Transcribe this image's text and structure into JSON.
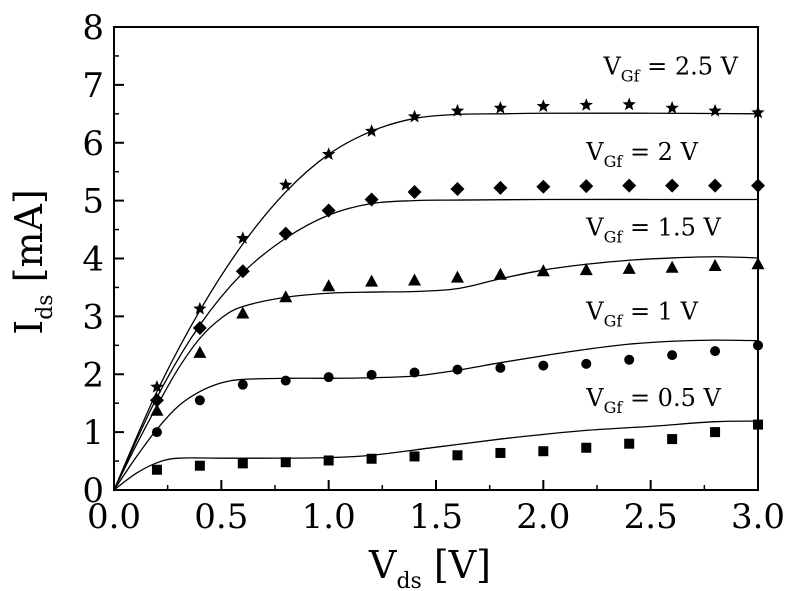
{
  "chart_data": {
    "type": "scatter",
    "title": "",
    "xlabel": {
      "main": "V",
      "sub": "ds",
      "unit": " [V]"
    },
    "ylabel": {
      "main": "I",
      "sub": "ds",
      "unit": " [mA]"
    },
    "xlim": [
      0,
      3
    ],
    "ylim": [
      0,
      8
    ],
    "xticks": [
      0,
      0.5,
      1,
      1.5,
      2,
      2.5,
      3
    ],
    "xtick_labels": [
      "0.0",
      "0.5",
      "1.0",
      "1.5",
      "2.0",
      "2.5",
      "3.0"
    ],
    "yticks": [
      0,
      1,
      2,
      3,
      4,
      5,
      6,
      7,
      8
    ],
    "ytick_labels": [
      "0",
      "1",
      "2",
      "3",
      "4",
      "5",
      "6",
      "7",
      "8"
    ],
    "grid": false,
    "legend": "none",
    "x": [
      0.2,
      0.4,
      0.6,
      0.8,
      1.0,
      1.2,
      1.4,
      1.6,
      1.8,
      2.0,
      2.2,
      2.4,
      2.6,
      2.8,
      3.0
    ],
    "series": [
      {
        "marker": "square",
        "label": {
          "main": "V",
          "sub": "Gf",
          "rest": " = 0.5 V"
        },
        "values": [
          0.35,
          0.42,
          0.46,
          0.48,
          0.51,
          0.54,
          0.58,
          0.6,
          0.64,
          0.67,
          0.73,
          0.8,
          0.88,
          1.0,
          1.13
        ],
        "fit": [
          [
            0,
            0
          ],
          [
            0.1,
            0.28
          ],
          [
            0.2,
            0.47
          ],
          [
            0.3,
            0.55
          ],
          [
            0.5,
            0.55
          ],
          [
            0.7,
            0.55
          ],
          [
            1.0,
            0.56
          ],
          [
            1.2,
            0.6
          ],
          [
            1.5,
            0.74
          ],
          [
            1.8,
            0.88
          ],
          [
            2.0,
            0.96
          ],
          [
            2.2,
            1.03
          ],
          [
            2.5,
            1.1
          ],
          [
            2.8,
            1.18
          ],
          [
            3.0,
            1.19
          ]
        ]
      },
      {
        "marker": "circle",
        "label": {
          "main": "V",
          "sub": "Gf",
          "rest": " = 1 V"
        },
        "values": [
          1.0,
          1.55,
          1.82,
          1.89,
          1.95,
          1.99,
          2.03,
          2.08,
          2.11,
          2.15,
          2.18,
          2.25,
          2.33,
          2.4,
          2.5
        ],
        "fit": [
          [
            0,
            0
          ],
          [
            0.1,
            0.55
          ],
          [
            0.2,
            1.05
          ],
          [
            0.3,
            1.45
          ],
          [
            0.4,
            1.7
          ],
          [
            0.5,
            1.85
          ],
          [
            0.6,
            1.91
          ],
          [
            0.8,
            1.93
          ],
          [
            1.0,
            1.93
          ],
          [
            1.2,
            1.94
          ],
          [
            1.4,
            1.97
          ],
          [
            1.6,
            2.07
          ],
          [
            1.8,
            2.2
          ],
          [
            2.0,
            2.32
          ],
          [
            2.2,
            2.43
          ],
          [
            2.4,
            2.52
          ],
          [
            2.6,
            2.57
          ],
          [
            2.8,
            2.59
          ],
          [
            3.0,
            2.58
          ]
        ]
      },
      {
        "marker": "triangle",
        "label": {
          "main": "V",
          "sub": "Gf",
          "rest": " = 1.5 V"
        },
        "values": [
          1.37,
          2.37,
          3.05,
          3.33,
          3.52,
          3.6,
          3.62,
          3.67,
          3.72,
          3.78,
          3.8,
          3.82,
          3.84,
          3.87,
          3.9
        ],
        "fit": [
          [
            0,
            0
          ],
          [
            0.1,
            0.75
          ],
          [
            0.2,
            1.45
          ],
          [
            0.3,
            2.1
          ],
          [
            0.4,
            2.62
          ],
          [
            0.5,
            2.97
          ],
          [
            0.6,
            3.17
          ],
          [
            0.8,
            3.33
          ],
          [
            1.0,
            3.4
          ],
          [
            1.2,
            3.42
          ],
          [
            1.4,
            3.43
          ],
          [
            1.6,
            3.48
          ],
          [
            1.8,
            3.65
          ],
          [
            2.0,
            3.8
          ],
          [
            2.2,
            3.9
          ],
          [
            2.4,
            3.97
          ],
          [
            2.6,
            4.01
          ],
          [
            2.8,
            4.03
          ],
          [
            3.0,
            4.01
          ]
        ]
      },
      {
        "marker": "diamond",
        "label": {
          "main": "V",
          "sub": "Gf",
          "rest": " = 2 V"
        },
        "values": [
          1.55,
          2.8,
          3.78,
          4.43,
          4.83,
          5.02,
          5.15,
          5.2,
          5.22,
          5.24,
          5.25,
          5.26,
          5.26,
          5.26,
          5.26
        ],
        "fit": [
          [
            0,
            0
          ],
          [
            0.2,
            1.6
          ],
          [
            0.4,
            2.85
          ],
          [
            0.6,
            3.75
          ],
          [
            0.8,
            4.35
          ],
          [
            1.0,
            4.75
          ],
          [
            1.2,
            4.95
          ],
          [
            1.4,
            5.0
          ],
          [
            1.6,
            5.01
          ],
          [
            2.0,
            5.02
          ],
          [
            2.5,
            5.02
          ],
          [
            3.0,
            5.02
          ]
        ]
      },
      {
        "marker": "star",
        "label": {
          "main": "V",
          "sub": "Gf",
          "rest": " = 2.5 V"
        },
        "values": [
          1.78,
          3.13,
          4.35,
          5.27,
          5.8,
          6.2,
          6.45,
          6.55,
          6.6,
          6.63,
          6.65,
          6.66,
          6.6,
          6.55,
          6.52
        ],
        "fit": [
          [
            0,
            0
          ],
          [
            0.2,
            1.7
          ],
          [
            0.4,
            3.1
          ],
          [
            0.6,
            4.25
          ],
          [
            0.8,
            5.15
          ],
          [
            1.0,
            5.8
          ],
          [
            1.2,
            6.2
          ],
          [
            1.4,
            6.42
          ],
          [
            1.6,
            6.49
          ],
          [
            1.8,
            6.5
          ],
          [
            2.0,
            6.51
          ],
          [
            2.5,
            6.51
          ],
          [
            3.0,
            6.5
          ]
        ]
      }
    ],
    "annotations": [
      {
        "series": 4,
        "at": [
          2.28,
          7.18
        ]
      },
      {
        "series": 3,
        "at": [
          2.2,
          5.7
        ]
      },
      {
        "series": 2,
        "at": [
          2.2,
          4.4
        ]
      },
      {
        "series": 1,
        "at": [
          2.2,
          2.95
        ]
      },
      {
        "series": 0,
        "at": [
          2.2,
          1.45
        ]
      }
    ]
  }
}
